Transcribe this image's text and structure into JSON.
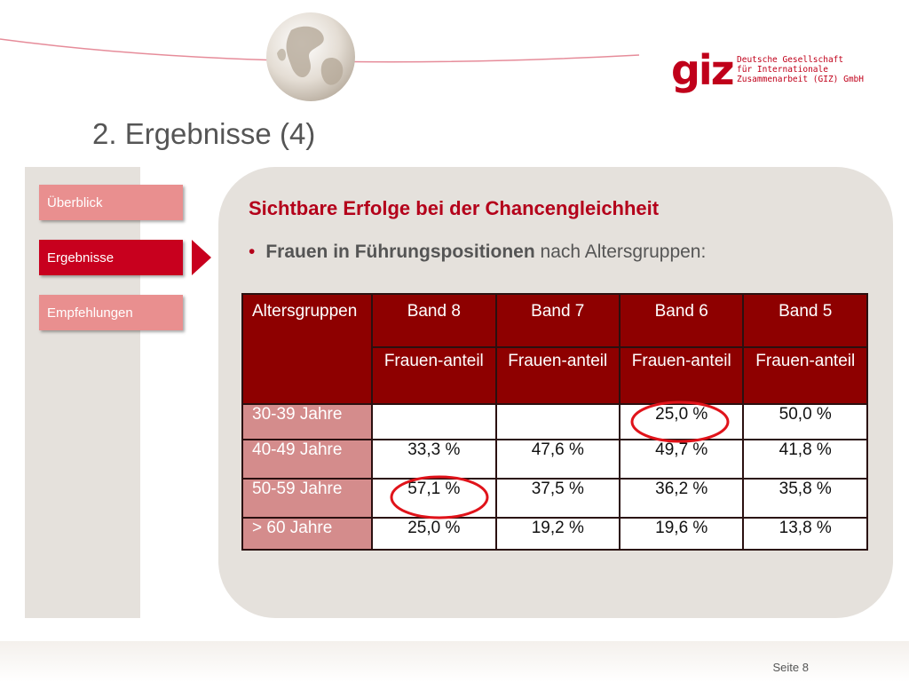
{
  "header": {
    "logo_mark": "giz",
    "logo_lines": [
      "Deutsche Gesellschaft",
      "für Internationale",
      "Zusammenarbeit (GIZ) GmbH"
    ]
  },
  "page_title": "2. Ergebnisse (4)",
  "nav": {
    "items": [
      {
        "label": "Überblick",
        "active": false
      },
      {
        "label": "Ergebnisse",
        "active": true
      },
      {
        "label": "Empfehlungen",
        "active": false
      }
    ]
  },
  "content": {
    "subtitle": "Sichtbare Erfolge bei der Chancengleichheit",
    "bullet_bold": "Frauen in Führungspositionen",
    "bullet_rest": " nach Altersgruppen:"
  },
  "table": {
    "headers": [
      "Altersgruppen",
      "Band 8",
      "Band 7",
      "Band 6",
      "Band 5"
    ],
    "subheader": "Frauen-anteil",
    "rows": [
      {
        "label": "30-39 Jahre",
        "values": [
          "",
          "",
          "25,0 %",
          "50,0 %"
        ]
      },
      {
        "label": "40-49 Jahre",
        "values": [
          "33,3 %",
          "47,6 %",
          "49,7 %",
          "41,8 %"
        ]
      },
      {
        "label": "50-59 Jahre",
        "values": [
          "57,1 %",
          "37,5 %",
          "36,2 %",
          "35,8 %"
        ]
      },
      {
        "label": "> 60 Jahre",
        "values": [
          "25,0 %",
          "19,2 %",
          "19,6 %",
          "13,8 %"
        ]
      }
    ]
  },
  "footer": {
    "page_label": "Seite 8"
  },
  "colors": {
    "accent": "#c8001e",
    "header_dark": "#8e0000",
    "row_label": "#d48c8c",
    "panel": "#e5e1dc"
  }
}
